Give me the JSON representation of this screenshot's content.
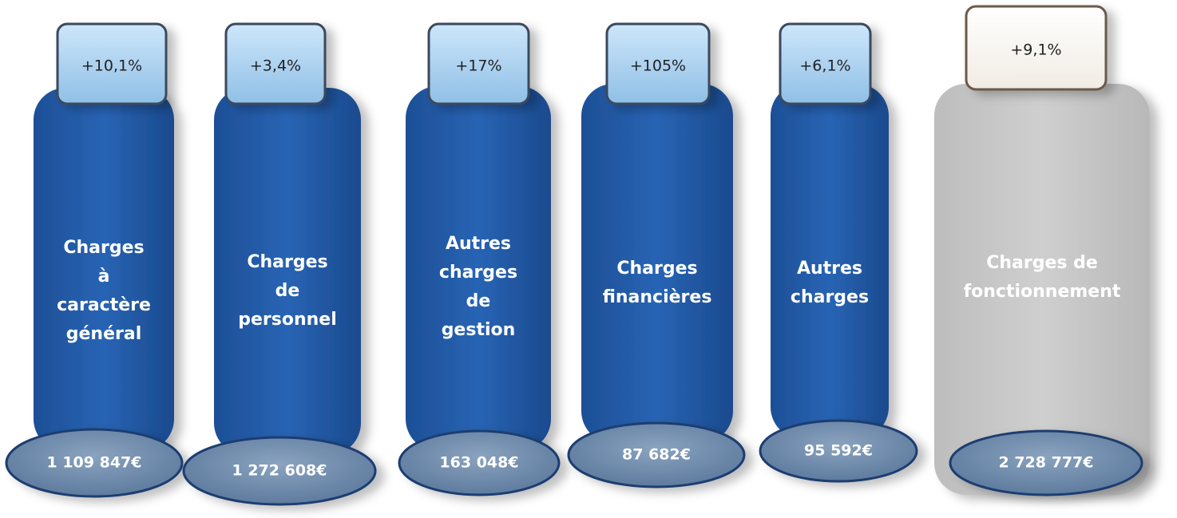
{
  "items": [
    {
      "change": "+10,1%",
      "label": [
        "Charges",
        "à",
        "caractère",
        "général"
      ],
      "amount": "1 109 847€"
    },
    {
      "change": "+3,4%",
      "label": [
        "Charges",
        "de",
        "personnel"
      ],
      "amount": "1 272 608€"
    },
    {
      "change": "+17%",
      "label": [
        "Autres",
        "charges",
        "de",
        "gestion"
      ],
      "amount": "163 048€"
    },
    {
      "change": "+105%",
      "label": [
        "Charges",
        "financières"
      ],
      "amount": "87 682€"
    },
    {
      "change": "+6,1%",
      "label": [
        "Autres",
        "charges"
      ],
      "amount": "95 592€"
    },
    {
      "change": "+9,1%",
      "label": [
        "Charges de",
        "fonctionnement"
      ],
      "amount": "2 728 777€"
    }
  ]
}
